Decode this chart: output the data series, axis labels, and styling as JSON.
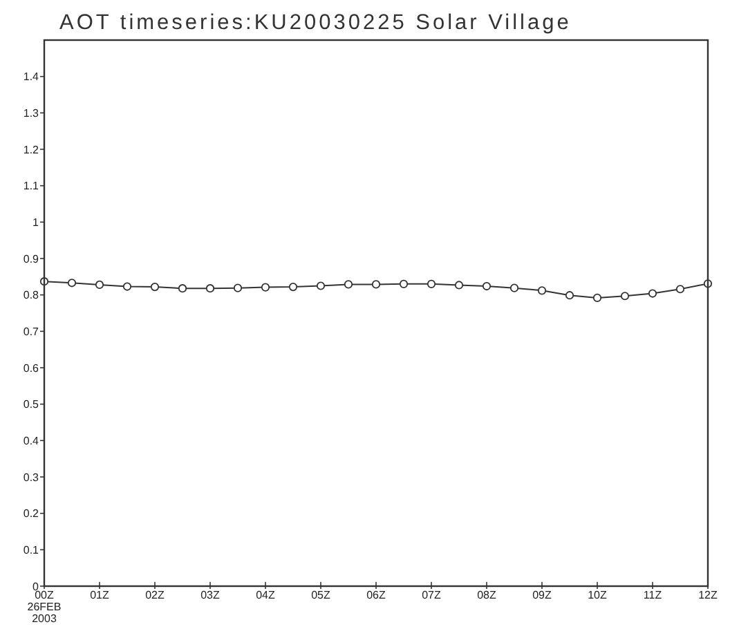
{
  "chart_data": {
    "type": "line",
    "title": "AOT timeseries:KU20030225 Solar Village",
    "x": [
      0,
      0.5,
      1,
      1.5,
      2,
      2.5,
      3,
      3.5,
      4,
      4.5,
      5,
      5.5,
      6,
      6.5,
      7,
      7.5,
      8,
      8.5,
      9,
      9.5,
      10,
      10.5,
      11,
      11.5,
      12
    ],
    "series": [
      {
        "color": "#333333",
        "values": [
          0.837,
          0.833,
          0.828,
          0.823,
          0.822,
          0.818,
          0.818,
          0.819,
          0.821,
          0.822,
          0.825,
          0.829,
          0.829,
          0.83,
          0.83,
          0.827,
          0.824,
          0.819,
          0.812,
          0.799,
          0.792,
          0.797,
          0.804,
          0.816,
          0.831
        ]
      }
    ],
    "xlim": [
      0,
      12
    ],
    "xticks": [
      {
        "value": 0,
        "label": "00Z\n26FEB\n2003"
      },
      {
        "value": 1,
        "label": "01Z"
      },
      {
        "value": 2,
        "label": "02Z"
      },
      {
        "value": 3,
        "label": "03Z"
      },
      {
        "value": 4,
        "label": "04Z"
      },
      {
        "value": 5,
        "label": "05Z"
      },
      {
        "value": 6,
        "label": "06Z"
      },
      {
        "value": 7,
        "label": "07Z"
      },
      {
        "value": 8,
        "label": "08Z"
      },
      {
        "value": 9,
        "label": "09Z"
      },
      {
        "value": 10,
        "label": "10Z"
      },
      {
        "value": 11,
        "label": "11Z"
      },
      {
        "value": 12,
        "label": "12Z"
      }
    ],
    "ylim": [
      0,
      1.5
    ],
    "yticks": [
      0,
      0.1,
      0.2,
      0.3,
      0.4,
      0.5,
      0.6,
      0.7,
      0.8,
      0.9,
      1,
      1.1,
      1.2,
      1.3,
      1.4
    ],
    "grid": false,
    "marker": "circle",
    "line_style": "solid"
  }
}
